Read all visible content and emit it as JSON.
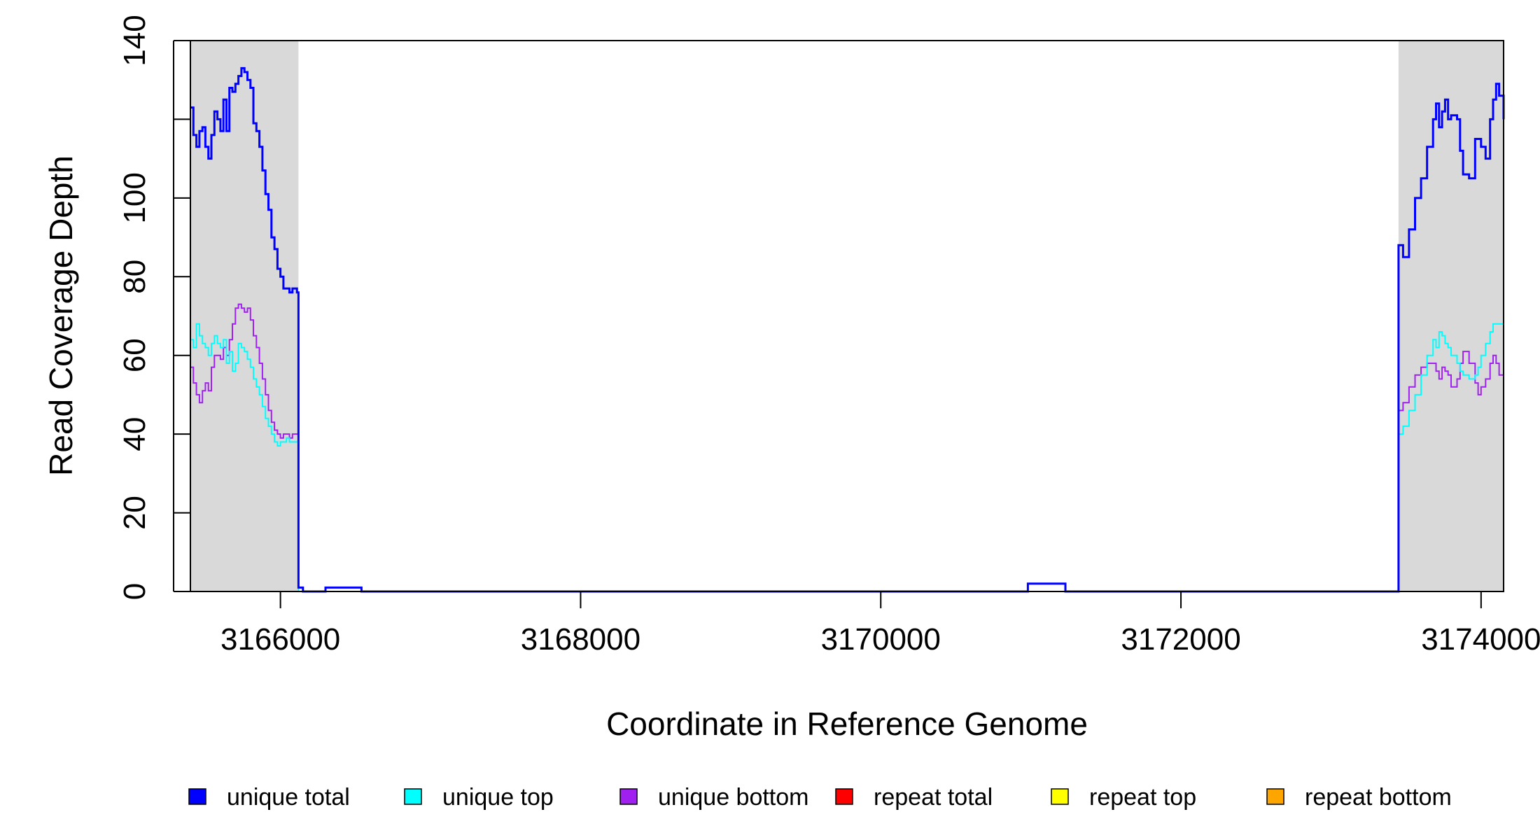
{
  "chart_data": {
    "type": "line",
    "xlabel": "Coordinate in Reference Genome",
    "ylabel": "Read Coverage Depth",
    "xlim": [
      3165400,
      3174150
    ],
    "ylim": [
      0,
      140
    ],
    "x_ticks": [
      3166000,
      3168000,
      3170000,
      3172000,
      3174000
    ],
    "x_tick_labels": [
      "3166000",
      "3168000",
      "3170000",
      "3172000",
      "3174000"
    ],
    "y_ticks": [
      0,
      20,
      40,
      60,
      80,
      100,
      120,
      140
    ],
    "y_tick_labels": [
      "0",
      "20",
      "40",
      "60",
      "80",
      "100",
      "",
      "140"
    ],
    "grid": false,
    "legend_position": "bottom",
    "shaded_regions": [
      {
        "x0": 3165400,
        "x1": 3166120,
        "color": "#d9d9d9"
      },
      {
        "x0": 3173450,
        "x1": 3174150,
        "color": "#d9d9d9"
      }
    ],
    "series": [
      {
        "name": "unique total",
        "color": "#0000ff",
        "width": 3,
        "points": [
          [
            3165400,
            123
          ],
          [
            3165420,
            116
          ],
          [
            3165440,
            113
          ],
          [
            3165460,
            117
          ],
          [
            3165480,
            118
          ],
          [
            3165500,
            113
          ],
          [
            3165520,
            110
          ],
          [
            3165540,
            116
          ],
          [
            3165560,
            122
          ],
          [
            3165580,
            120
          ],
          [
            3165600,
            117
          ],
          [
            3165620,
            125
          ],
          [
            3165640,
            117
          ],
          [
            3165660,
            128
          ],
          [
            3165680,
            127
          ],
          [
            3165700,
            129
          ],
          [
            3165720,
            131
          ],
          [
            3165740,
            133
          ],
          [
            3165760,
            132
          ],
          [
            3165780,
            130
          ],
          [
            3165800,
            128
          ],
          [
            3165820,
            119
          ],
          [
            3165840,
            117
          ],
          [
            3165860,
            113
          ],
          [
            3165880,
            107
          ],
          [
            3165900,
            101
          ],
          [
            3165920,
            97
          ],
          [
            3165940,
            90
          ],
          [
            3165960,
            87
          ],
          [
            3165980,
            82
          ],
          [
            3166000,
            80
          ],
          [
            3166020,
            77
          ],
          [
            3166040,
            77
          ],
          [
            3166060,
            76
          ],
          [
            3166080,
            77
          ],
          [
            3166110,
            76
          ],
          [
            3166120,
            1
          ],
          [
            3166150,
            0
          ],
          [
            3166300,
            1
          ],
          [
            3166500,
            1
          ],
          [
            3166540,
            0
          ],
          [
            3170980,
            2
          ],
          [
            3171200,
            2
          ],
          [
            3171230,
            0
          ],
          [
            3173430,
            0
          ],
          [
            3173450,
            88
          ],
          [
            3173480,
            85
          ],
          [
            3173520,
            92
          ],
          [
            3173560,
            100
          ],
          [
            3173600,
            105
          ],
          [
            3173640,
            113
          ],
          [
            3173680,
            120
          ],
          [
            3173700,
            124
          ],
          [
            3173720,
            118
          ],
          [
            3173740,
            122
          ],
          [
            3173760,
            125
          ],
          [
            3173780,
            120
          ],
          [
            3173800,
            121
          ],
          [
            3173840,
            120
          ],
          [
            3173860,
            112
          ],
          [
            3173880,
            106
          ],
          [
            3173920,
            105
          ],
          [
            3173960,
            115
          ],
          [
            3173980,
            115
          ],
          [
            3174000,
            113
          ],
          [
            3174030,
            110
          ],
          [
            3174060,
            120
          ],
          [
            3174080,
            125
          ],
          [
            3174100,
            129
          ],
          [
            3174120,
            126
          ],
          [
            3174150,
            120
          ]
        ]
      },
      {
        "name": "unique top",
        "color": "#00ffff",
        "width": 2,
        "points": [
          [
            3165400,
            64
          ],
          [
            3165420,
            62
          ],
          [
            3165440,
            68
          ],
          [
            3165460,
            65
          ],
          [
            3165480,
            63
          ],
          [
            3165500,
            62
          ],
          [
            3165520,
            60
          ],
          [
            3165540,
            63
          ],
          [
            3165560,
            65
          ],
          [
            3165580,
            63
          ],
          [
            3165600,
            62
          ],
          [
            3165620,
            64
          ],
          [
            3165640,
            58
          ],
          [
            3165660,
            61
          ],
          [
            3165680,
            56
          ],
          [
            3165700,
            58
          ],
          [
            3165720,
            63
          ],
          [
            3165740,
            62
          ],
          [
            3165760,
            61
          ],
          [
            3165780,
            59
          ],
          [
            3165800,
            57
          ],
          [
            3165820,
            54
          ],
          [
            3165840,
            52
          ],
          [
            3165860,
            50
          ],
          [
            3165880,
            47
          ],
          [
            3165900,
            44
          ],
          [
            3165920,
            42
          ],
          [
            3165940,
            40
          ],
          [
            3165960,
            38
          ],
          [
            3165980,
            37
          ],
          [
            3166000,
            38
          ],
          [
            3166020,
            38
          ],
          [
            3166040,
            39
          ],
          [
            3166060,
            38
          ],
          [
            3166080,
            38
          ],
          [
            3166110,
            38
          ],
          [
            3166120,
            0
          ],
          [
            3173430,
            0
          ],
          [
            3173450,
            40
          ],
          [
            3173480,
            42
          ],
          [
            3173520,
            46
          ],
          [
            3173560,
            50
          ],
          [
            3173600,
            55
          ],
          [
            3173640,
            60
          ],
          [
            3173680,
            64
          ],
          [
            3173700,
            62
          ],
          [
            3173720,
            66
          ],
          [
            3173740,
            65
          ],
          [
            3173760,
            63
          ],
          [
            3173780,
            62
          ],
          [
            3173800,
            60
          ],
          [
            3173840,
            58
          ],
          [
            3173860,
            56
          ],
          [
            3173880,
            55
          ],
          [
            3173920,
            54
          ],
          [
            3173960,
            55
          ],
          [
            3173980,
            57
          ],
          [
            3174000,
            60
          ],
          [
            3174030,
            63
          ],
          [
            3174060,
            66
          ],
          [
            3174080,
            68
          ],
          [
            3174100,
            68
          ],
          [
            3174150,
            66
          ]
        ]
      },
      {
        "name": "unique bottom",
        "color": "#a020f0",
        "width": 2,
        "points": [
          [
            3165400,
            57
          ],
          [
            3165420,
            53
          ],
          [
            3165440,
            50
          ],
          [
            3165460,
            48
          ],
          [
            3165480,
            51
          ],
          [
            3165500,
            53
          ],
          [
            3165520,
            51
          ],
          [
            3165540,
            57
          ],
          [
            3165560,
            60
          ],
          [
            3165580,
            60
          ],
          [
            3165600,
            59
          ],
          [
            3165620,
            62
          ],
          [
            3165640,
            60
          ],
          [
            3165660,
            64
          ],
          [
            3165680,
            68
          ],
          [
            3165700,
            72
          ],
          [
            3165720,
            73
          ],
          [
            3165740,
            72
          ],
          [
            3165760,
            71
          ],
          [
            3165780,
            72
          ],
          [
            3165800,
            69
          ],
          [
            3165820,
            65
          ],
          [
            3165840,
            62
          ],
          [
            3165860,
            58
          ],
          [
            3165880,
            54
          ],
          [
            3165900,
            50
          ],
          [
            3165920,
            46
          ],
          [
            3165940,
            43
          ],
          [
            3165960,
            41
          ],
          [
            3165980,
            40
          ],
          [
            3166000,
            39
          ],
          [
            3166020,
            40
          ],
          [
            3166040,
            40
          ],
          [
            3166060,
            39
          ],
          [
            3166080,
            40
          ],
          [
            3166110,
            40
          ],
          [
            3166120,
            1
          ],
          [
            3166150,
            0
          ],
          [
            3166300,
            1
          ],
          [
            3166500,
            1
          ],
          [
            3166540,
            0
          ],
          [
            3170980,
            2
          ],
          [
            3171200,
            2
          ],
          [
            3171230,
            0
          ],
          [
            3173430,
            0
          ],
          [
            3173450,
            46
          ],
          [
            3173480,
            48
          ],
          [
            3173520,
            52
          ],
          [
            3173560,
            55
          ],
          [
            3173600,
            57
          ],
          [
            3173640,
            58
          ],
          [
            3173680,
            58
          ],
          [
            3173700,
            56
          ],
          [
            3173720,
            54
          ],
          [
            3173740,
            57
          ],
          [
            3173760,
            56
          ],
          [
            3173780,
            55
          ],
          [
            3173800,
            52
          ],
          [
            3173840,
            54
          ],
          [
            3173860,
            58
          ],
          [
            3173880,
            61
          ],
          [
            3173920,
            58
          ],
          [
            3173960,
            53
          ],
          [
            3173980,
            50
          ],
          [
            3174000,
            52
          ],
          [
            3174030,
            54
          ],
          [
            3174060,
            58
          ],
          [
            3174080,
            60
          ],
          [
            3174100,
            58
          ],
          [
            3174120,
            55
          ],
          [
            3174150,
            54
          ]
        ]
      },
      {
        "name": "repeat total",
        "color": "#ff0000",
        "width": 2,
        "points": [
          [
            3165400,
            0
          ],
          [
            3174150,
            0
          ]
        ]
      },
      {
        "name": "repeat top",
        "color": "#ffff00",
        "width": 2,
        "points": [
          [
            3165400,
            0
          ],
          [
            3174150,
            0
          ]
        ]
      },
      {
        "name": "repeat bottom",
        "color": "#ffa500",
        "width": 2,
        "points": [
          [
            3165400,
            0
          ],
          [
            3174150,
            0
          ]
        ]
      }
    ]
  }
}
